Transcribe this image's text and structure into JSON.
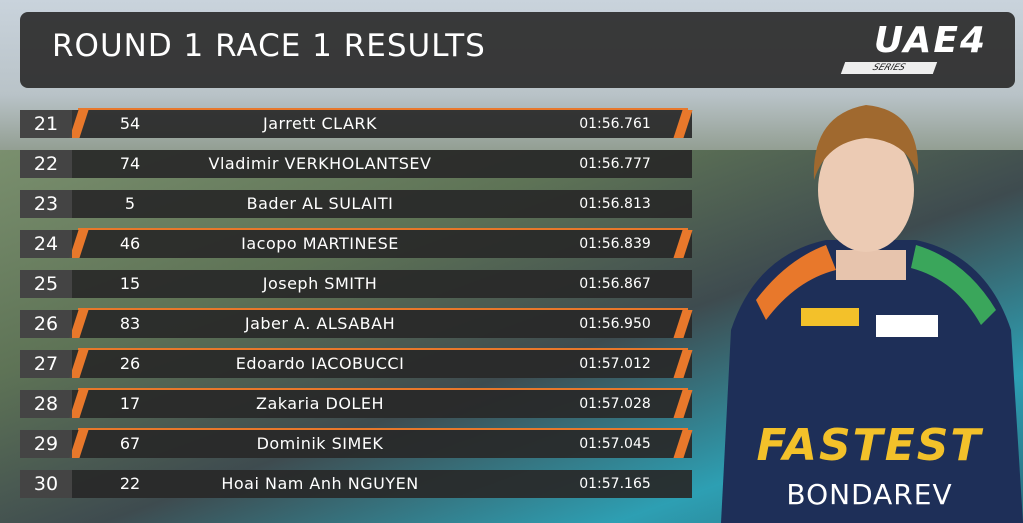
{
  "header": {
    "title": "ROUND 1 RACE 1 RESULTS",
    "logo": "UAE4",
    "logo_sub": "SERIES"
  },
  "table": {
    "rows": [
      {
        "position": 21,
        "number": 54,
        "driver": "Jarrett CLARK",
        "time": "01:56.761",
        "accent": true
      },
      {
        "position": 22,
        "number": 74,
        "driver": "Vladimir VERKHOLANTSEV",
        "time": "01:56.777",
        "accent": false
      },
      {
        "position": 23,
        "number": 5,
        "driver": "Bader AL SULAITI",
        "time": "01:56.813",
        "accent": false
      },
      {
        "position": 24,
        "number": 46,
        "driver": "Iacopo MARTINESE",
        "time": "01:56.839",
        "accent": true
      },
      {
        "position": 25,
        "number": 15,
        "driver": "Joseph SMITH",
        "time": "01:56.867",
        "accent": false
      },
      {
        "position": 26,
        "number": 83,
        "driver": "Jaber A. ALSABAH",
        "time": "01:56.950",
        "accent": true
      },
      {
        "position": 27,
        "number": 26,
        "driver": "Edoardo IACOBUCCI",
        "time": "01:57.012",
        "accent": true
      },
      {
        "position": 28,
        "number": 17,
        "driver": "Zakaria DOLEH",
        "time": "01:57.028",
        "accent": true
      },
      {
        "position": 29,
        "number": 67,
        "driver": "Dominik SIMEK",
        "time": "01:57.045",
        "accent": true
      },
      {
        "position": 30,
        "number": 22,
        "driver": "Hoai Nam Anh NGUYEN",
        "time": "01:57.165",
        "accent": false
      }
    ]
  },
  "fastest": {
    "label": "FASTEST",
    "driver": "BONDAREV"
  }
}
